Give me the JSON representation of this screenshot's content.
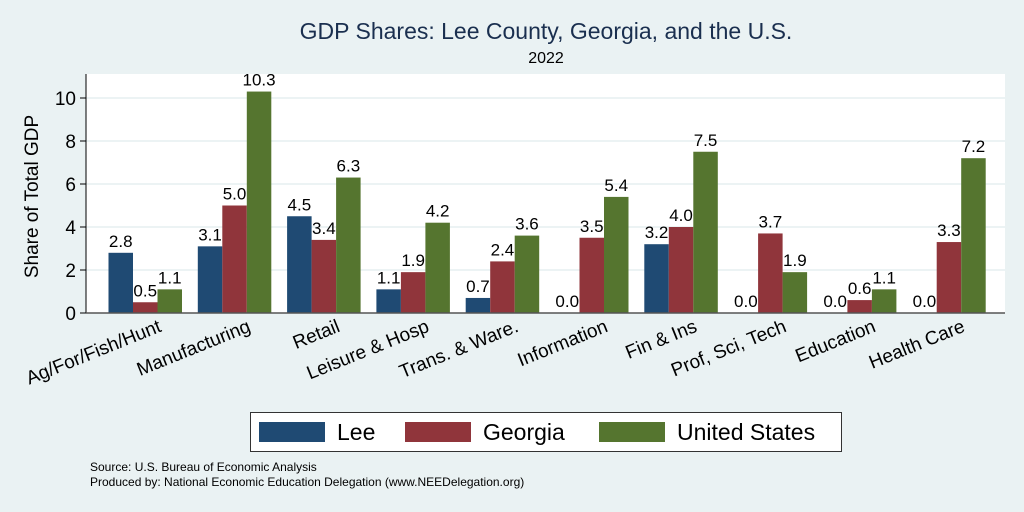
{
  "chart_data": {
    "type": "bar",
    "title": "GDP Shares: Lee County, Georgia, and the U.S.",
    "subtitle": "2022",
    "xlabel": "",
    "ylabel": "Share of Total GDP",
    "ylim": [
      0,
      11
    ],
    "yticks": [
      0,
      2,
      4,
      6,
      8,
      10
    ],
    "grid": true,
    "legend_position": "bottom",
    "categories": [
      "Ag/For/Fish/Hunt",
      "Manufacturing",
      "Retail",
      "Leisure & Hosp",
      "Trans. & Ware.",
      "Information",
      "Fin & Ins",
      "Prof, Sci, Tech",
      "Education",
      "Health Care"
    ],
    "series": [
      {
        "name": "Lee",
        "color": "#1f4a73",
        "values": [
          2.8,
          3.1,
          4.5,
          1.1,
          0.7,
          0.0,
          3.2,
          0.0,
          0.0,
          0.0
        ]
      },
      {
        "name": "Georgia",
        "color": "#90353b",
        "values": [
          0.5,
          5.0,
          3.4,
          1.9,
          2.4,
          3.5,
          4.0,
          3.7,
          0.6,
          3.3
        ]
      },
      {
        "name": "United States",
        "color": "#55752f",
        "values": [
          1.1,
          10.3,
          6.3,
          4.2,
          3.6,
          5.4,
          7.5,
          1.9,
          1.1,
          7.2
        ]
      }
    ],
    "value_labels_format": "0.0"
  },
  "notes": {
    "source": "Source: U.S. Bureau of Economic Analysis",
    "produced_by": "Produced by: National Economic Education Delegation (www.NEEDelegation.org)"
  }
}
